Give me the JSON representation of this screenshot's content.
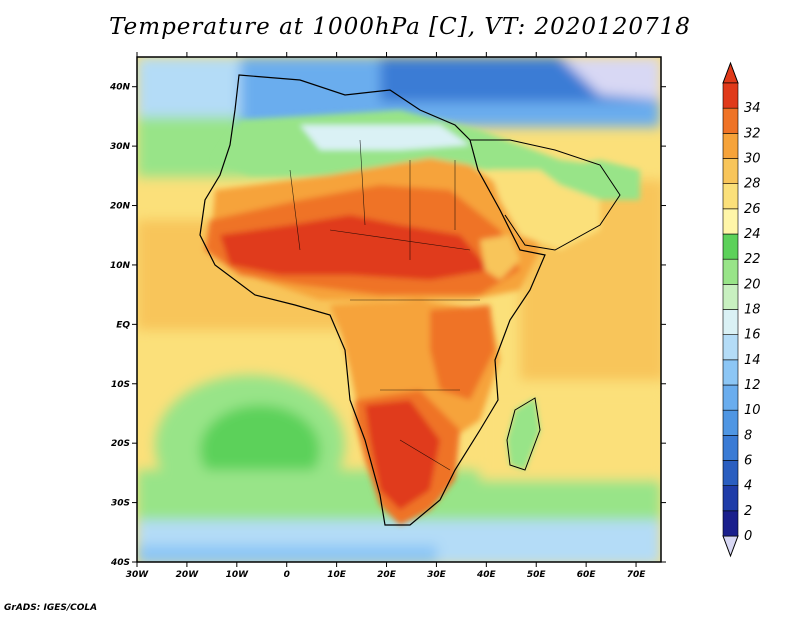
{
  "title": "Temperature at 1000hPa [C], VT: 2020120718",
  "credit": "GrADS: IGES/COLA",
  "axes": {
    "lat_labels": [
      "40N",
      "30N",
      "20N",
      "10N",
      "EQ",
      "10S",
      "20S",
      "30S",
      "40S"
    ],
    "lon_labels": [
      "30W",
      "20W",
      "10W",
      "0",
      "10E",
      "20E",
      "30E",
      "40E",
      "50E",
      "60E",
      "70E"
    ]
  },
  "colorbar": {
    "levels": [
      "0",
      "2",
      "4",
      "6",
      "8",
      "10",
      "12",
      "14",
      "16",
      "18",
      "20",
      "22",
      "24",
      "26",
      "28",
      "30",
      "32",
      "34"
    ],
    "colors": [
      "#1a1f8c",
      "#1f3ca8",
      "#2a5ec0",
      "#3a7bd5",
      "#4f96e3",
      "#6aadee",
      "#8cc6f5",
      "#b4dcf7",
      "#daf1f5",
      "#c8f0c0",
      "#98e488",
      "#5cd15a",
      "#fff6a8",
      "#fbe07a",
      "#f8c55a",
      "#f6a33a",
      "#ef7326",
      "#e03a1a"
    ]
  },
  "regions": {
    "ocean_cold": "#b4dcf7",
    "ocean_cool": "#daf1f5",
    "ocean_mild": "#98e488",
    "ocean_warm": "#fbe07a",
    "ocean_hot": "#f8c55a",
    "land_hot": "#ef7326",
    "land_very_hot": "#e03a1a",
    "land_warm": "#f6a33a",
    "med_cold": "#4f96e3",
    "arctic": "#d8d8f4"
  }
}
